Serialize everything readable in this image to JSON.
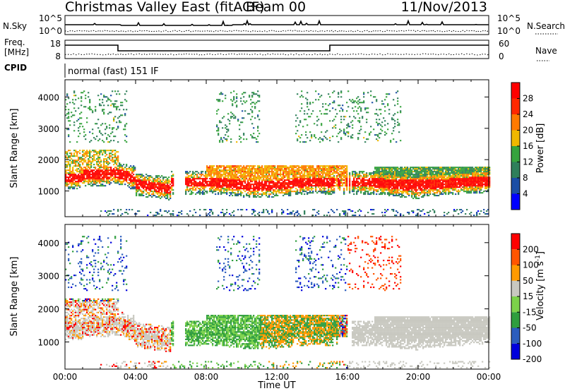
{
  "header": {
    "title": "Christmas Valley East (fitACF)",
    "beam": "Beam 00",
    "date": "11/Nov/2013"
  },
  "panels": {
    "nsky": {
      "left_label": "N.Sky",
      "right_label": "N.Search",
      "ticks_left": [
        "10^5",
        "10^0"
      ],
      "ticks_right": [
        "10^5",
        "10^0"
      ]
    },
    "freq": {
      "left_label_line1": "Freq.",
      "left_label_line2": "[MHz]",
      "right_label": "Nave",
      "ticks_left": [
        "18",
        "8"
      ],
      "ticks_right": [
        "60",
        "0"
      ]
    },
    "cpid": {
      "label": "CPID",
      "text": "normal (fast) 151 IF"
    }
  },
  "chart_data": [
    {
      "type": "heatmap",
      "title": "",
      "xlabel": "Time UT",
      "ylabel": "Slant Range [km]",
      "x_ticks": [
        "00:00",
        "04:00",
        "08:00",
        "12:00",
        "16:00",
        "20:00",
        "00:00"
      ],
      "y_ticks": [
        "1000",
        "2000",
        "3000",
        "4000"
      ],
      "xlim_hours": [
        0,
        24
      ],
      "ylim_km": [
        180,
        4550
      ],
      "colorbar": {
        "label": "Power [dB]",
        "ticks": [
          "4",
          "8",
          "12",
          "16",
          "20",
          "24",
          "28"
        ],
        "range": [
          0,
          30
        ],
        "colors": [
          "#0000ff",
          "#1b4ea5",
          "#2f7f5a",
          "#36a33d",
          "#f0b800",
          "#ff7a00",
          "#ff2800",
          "#ff0000"
        ]
      }
    },
    {
      "type": "heatmap",
      "title": "",
      "xlabel": "Time UT",
      "ylabel": "Slant Range [km]",
      "x_ticks": [
        "00:00",
        "04:00",
        "08:00",
        "12:00",
        "16:00",
        "20:00",
        "00:00"
      ],
      "y_ticks": [
        "1000",
        "2000",
        "3000",
        "4000"
      ],
      "xlim_hours": [
        0,
        24
      ],
      "ylim_km": [
        180,
        4550
      ],
      "colorbar": {
        "label": "Velocity [m s^-1]",
        "ticks": [
          "200",
          "100",
          "50",
          "15",
          "-15",
          "-50",
          "-100",
          "-200"
        ],
        "range": [
          -200,
          200
        ],
        "colors": [
          "#0000dd",
          "#2b5dbd",
          "#2f9e3e",
          "#7cd24a",
          "#c8c8c0",
          "#ff9a00",
          "#ff5500",
          "#ff0000"
        ]
      }
    }
  ]
}
